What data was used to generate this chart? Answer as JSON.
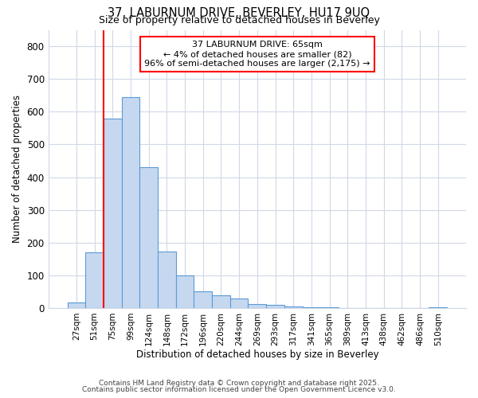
{
  "title1": "37, LABURNUM DRIVE, BEVERLEY, HU17 9UQ",
  "title2": "Size of property relative to detached houses in Beverley",
  "xlabel": "Distribution of detached houses by size in Beverley",
  "ylabel": "Number of detached properties",
  "categories": [
    "27sqm",
    "51sqm",
    "75sqm",
    "99sqm",
    "124sqm",
    "148sqm",
    "172sqm",
    "196sqm",
    "220sqm",
    "244sqm",
    "269sqm",
    "293sqm",
    "317sqm",
    "341sqm",
    "365sqm",
    "389sqm",
    "413sqm",
    "438sqm",
    "462sqm",
    "486sqm",
    "510sqm"
  ],
  "values": [
    18,
    170,
    580,
    645,
    430,
    172,
    100,
    50,
    38,
    30,
    11,
    10,
    4,
    3,
    2,
    1,
    1,
    0,
    0,
    0,
    2
  ],
  "bar_color": "#c5d8f0",
  "bar_edge_color": "#5b9bd5",
  "red_line_index": 2,
  "annotation_text": "37 LABURNUM DRIVE: 65sqm\n← 4% of detached houses are smaller (82)\n96% of semi-detached houses are larger (2,175) →",
  "annotation_box_color": "white",
  "annotation_box_edge_color": "red",
  "ylim": [
    0,
    850
  ],
  "yticks": [
    0,
    100,
    200,
    300,
    400,
    500,
    600,
    700,
    800
  ],
  "footnote1": "Contains HM Land Registry data © Crown copyright and database right 2025.",
  "footnote2": "Contains public sector information licensed under the Open Government Licence v3.0.",
  "bg_color": "#ffffff",
  "grid_color": "#d0d8e8"
}
